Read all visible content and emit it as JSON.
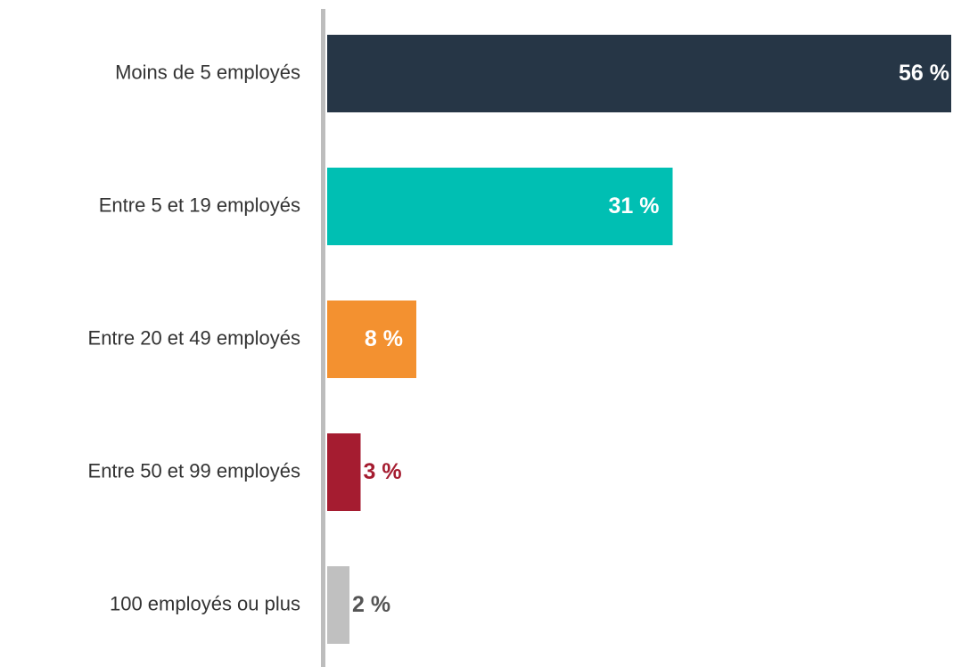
{
  "chart_data": {
    "type": "barh",
    "categories": [
      "Moins de 5 employés",
      "Entre 5 et 19 employés",
      "Entre 20 et 49 employés",
      "Entre 50 et 99 employés",
      "100 employés ou plus"
    ],
    "values": [
      56,
      31,
      8,
      3,
      2
    ],
    "value_labels": [
      "56 %",
      "31 %",
      "8 %",
      "3 %",
      "2 %"
    ],
    "colors": [
      "#263646",
      "#00bfb3",
      "#f39130",
      "#a51c30",
      "#c0c0c0"
    ],
    "label_colors": [
      "#ffffff",
      "#ffffff",
      "#ffffff",
      "#a51c30",
      "#555555"
    ]
  }
}
